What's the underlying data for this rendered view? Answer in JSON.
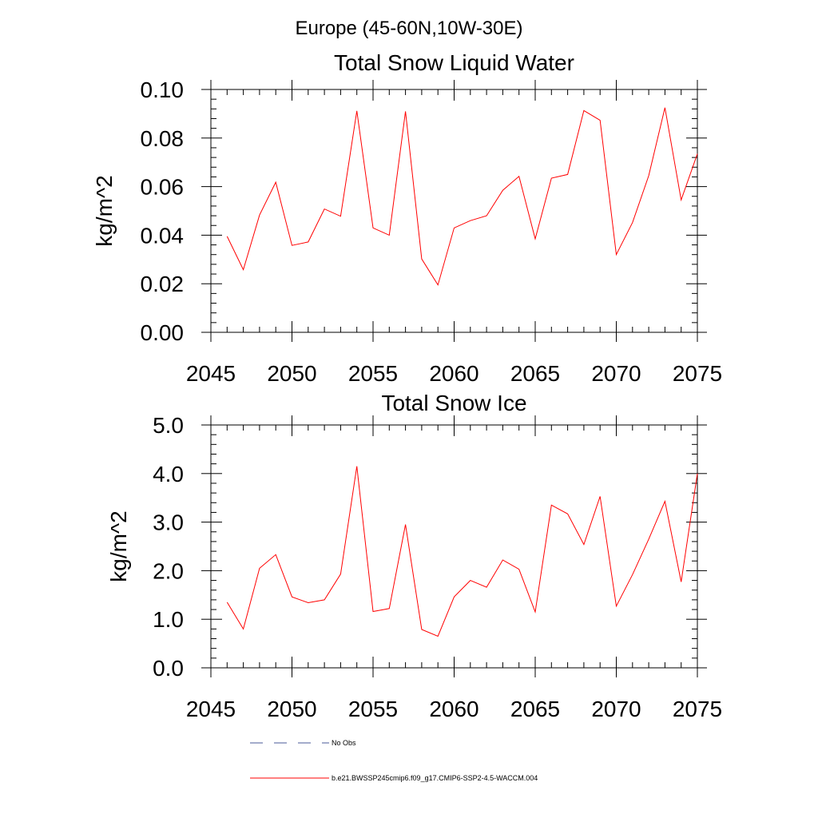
{
  "figure": {
    "suptitle": "Europe (45-60N,10W-30E)"
  },
  "chart_data": [
    {
      "type": "line",
      "title": "Total Snow Liquid Water",
      "xlabel": "",
      "ylabel": "kg/m^2",
      "xlim": [
        2045,
        2075
      ],
      "ylim": [
        0,
        0.1
      ],
      "xticks": [
        "2045",
        "2050",
        "2055",
        "2060",
        "2065",
        "2070",
        "2075"
      ],
      "yticks": [
        "0.00",
        "0.02",
        "0.04",
        "0.06",
        "0.08",
        "0.10"
      ],
      "grid": false,
      "x": [
        2046,
        2047,
        2048,
        2049,
        2050,
        2051,
        2052,
        2053,
        2054,
        2055,
        2056,
        2057,
        2058,
        2059,
        2060,
        2061,
        2062,
        2063,
        2064,
        2065,
        2066,
        2067,
        2068,
        2069,
        2070,
        2071,
        2072,
        2073,
        2074,
        2075
      ],
      "series": [
        {
          "name": "b.e21.BWSSP245cmip6.f09_g17.CMIP6-SSP2-4.5-WACCM.004",
          "color": "#ff0000",
          "values": [
            0.0395,
            0.0258,
            0.0483,
            0.0618,
            0.0358,
            0.0372,
            0.0508,
            0.0478,
            0.0912,
            0.043,
            0.04,
            0.091,
            0.0302,
            0.0195,
            0.043,
            0.046,
            0.048,
            0.0585,
            0.0642,
            0.0385,
            0.0635,
            0.065,
            0.0913,
            0.0873,
            0.032,
            0.0452,
            0.0645,
            0.0925,
            0.0545,
            0.0735
          ]
        }
      ]
    },
    {
      "type": "line",
      "title": "Total Snow Ice",
      "xlabel": "",
      "ylabel": "kg/m^2",
      "xlim": [
        2045,
        2075
      ],
      "ylim": [
        0,
        5.0
      ],
      "xticks": [
        "2045",
        "2050",
        "2055",
        "2060",
        "2065",
        "2070",
        "2075"
      ],
      "yticks": [
        "0.0",
        "1.0",
        "2.0",
        "3.0",
        "4.0",
        "5.0"
      ],
      "grid": false,
      "x": [
        2046,
        2047,
        2048,
        2049,
        2050,
        2051,
        2052,
        2053,
        2054,
        2055,
        2056,
        2057,
        2058,
        2059,
        2060,
        2061,
        2062,
        2063,
        2064,
        2065,
        2066,
        2067,
        2068,
        2069,
        2070,
        2071,
        2072,
        2073,
        2074,
        2075
      ],
      "series": [
        {
          "name": "b.e21.BWSSP245cmip6.f09_g17.CMIP6-SSP2-4.5-WACCM.004",
          "color": "#ff0000",
          "values": [
            1.35,
            0.8,
            2.05,
            2.33,
            1.46,
            1.34,
            1.4,
            1.93,
            4.15,
            1.16,
            1.22,
            2.95,
            0.79,
            0.65,
            1.46,
            1.8,
            1.66,
            2.22,
            2.03,
            1.15,
            3.35,
            3.17,
            2.54,
            3.53,
            1.27,
            1.92,
            2.65,
            3.43,
            1.77,
            4.0
          ]
        }
      ]
    }
  ],
  "legend": {
    "placement": "bottom",
    "entries": [
      {
        "label": "No Obs",
        "color": "#4a5a9a",
        "style": "dashed"
      },
      {
        "label": "b.e21.BWSSP245cmip6.f09_g17.CMIP6-SSP2-4.5-WACCM.004",
        "color": "#ff0000",
        "style": "solid"
      }
    ]
  }
}
